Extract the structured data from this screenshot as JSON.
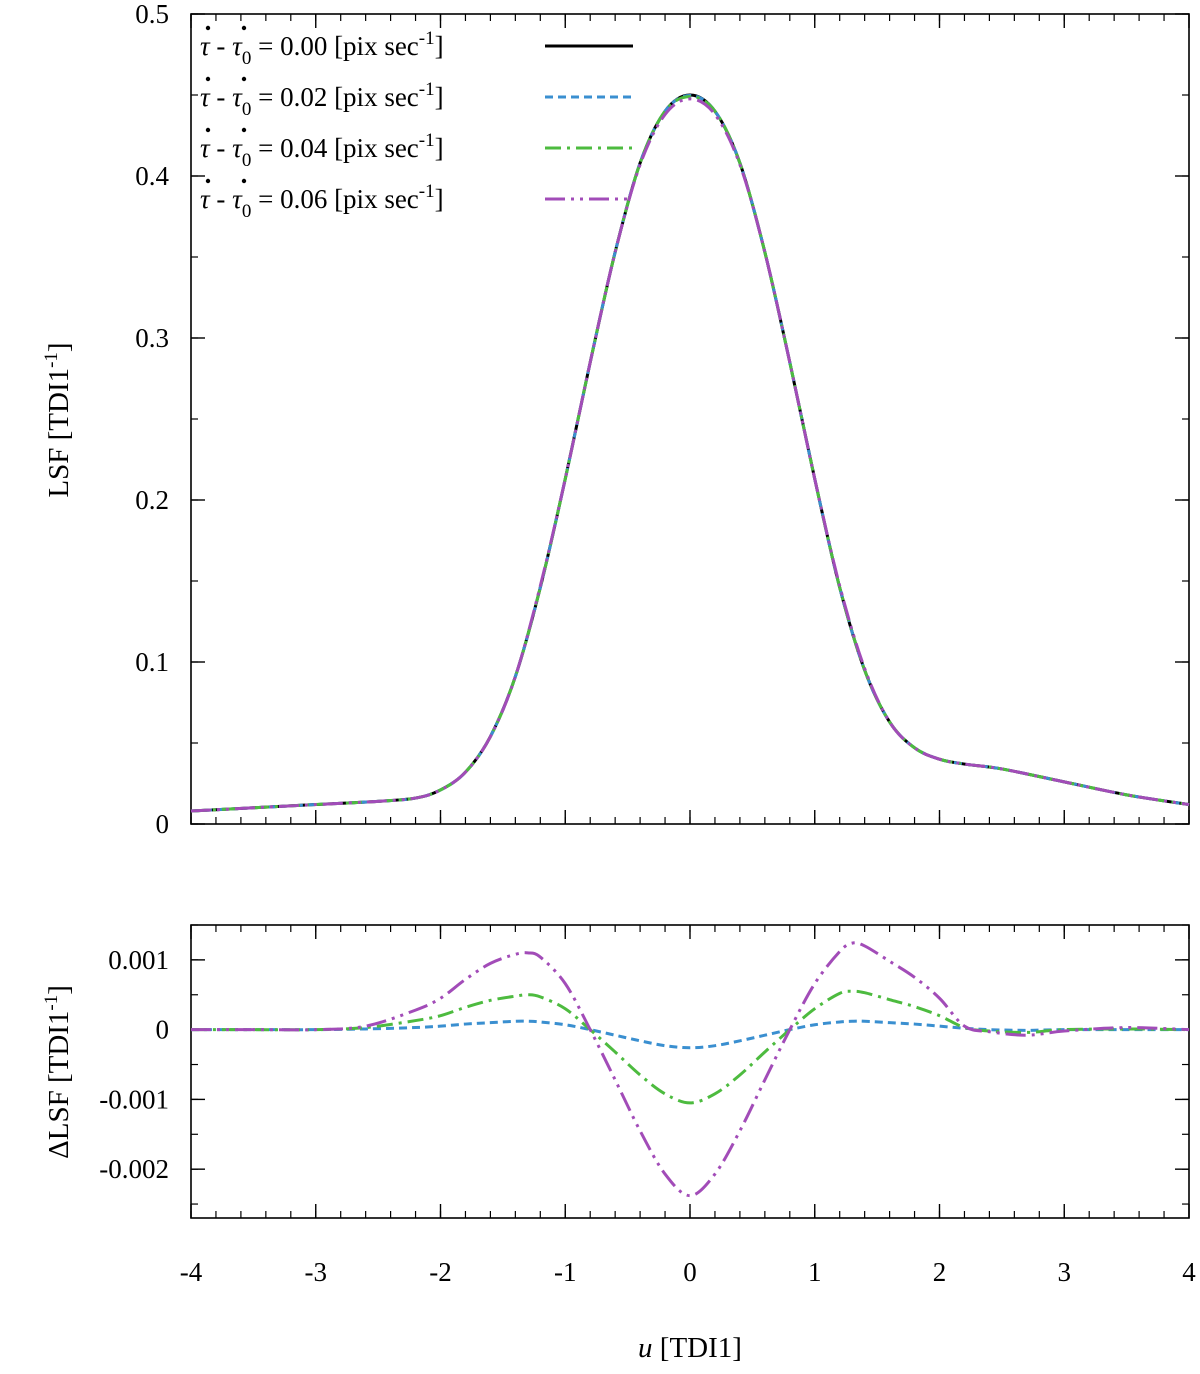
{
  "chart_data": [
    {
      "type": "line",
      "panel": "top",
      "ylabel": "LSF [TDI1",
      "ylabel_sup": "-1",
      "ylabel_tail": "]",
      "xlabel": "",
      "xlim": [
        -4,
        4
      ],
      "ylim": [
        0,
        0.5
      ],
      "xticks": [
        -4,
        -3,
        -2,
        -1,
        0,
        1,
        2,
        3,
        4
      ],
      "yticks": [
        0,
        0.1,
        0.2,
        0.3,
        0.4,
        0.5
      ],
      "ytick_labels": [
        "0",
        "0.1",
        "0.2",
        "0.3",
        "0.4",
        "0.5"
      ],
      "legend_position": "top-left",
      "x": [
        -4.0,
        -3.5,
        -3.0,
        -2.5,
        -2.2,
        -2.0,
        -1.8,
        -1.6,
        -1.4,
        -1.2,
        -1.0,
        -0.8,
        -0.6,
        -0.4,
        -0.2,
        0.0,
        0.2,
        0.4,
        0.6,
        0.8,
        1.0,
        1.2,
        1.4,
        1.6,
        1.8,
        2.0,
        2.2,
        2.5,
        3.0,
        3.5,
        4.0
      ],
      "series": [
        {
          "name": "0.00",
          "style": "solid",
          "color": "#000000",
          "values": [
            0.008,
            0.01,
            0.012,
            0.014,
            0.016,
            0.021,
            0.032,
            0.054,
            0.091,
            0.146,
            0.213,
            0.285,
            0.353,
            0.408,
            0.44,
            0.45,
            0.44,
            0.408,
            0.353,
            0.285,
            0.213,
            0.146,
            0.095,
            0.063,
            0.047,
            0.04,
            0.037,
            0.034,
            0.026,
            0.018,
            0.012
          ]
        },
        {
          "name": "0.02",
          "style": "dashed",
          "color": "#3a8fd0",
          "values": [
            0.008,
            0.01,
            0.012,
            0.014,
            0.016,
            0.021,
            0.032,
            0.054,
            0.091,
            0.146,
            0.213,
            0.285,
            0.353,
            0.408,
            0.44,
            0.4497,
            0.44,
            0.408,
            0.353,
            0.285,
            0.213,
            0.146,
            0.095,
            0.063,
            0.047,
            0.04,
            0.037,
            0.034,
            0.026,
            0.018,
            0.012
          ]
        },
        {
          "name": "0.04",
          "style": "dashdot",
          "color": "#4dbb3f",
          "values": [
            0.008,
            0.01,
            0.012,
            0.014,
            0.016,
            0.021,
            0.032,
            0.054,
            0.091,
            0.146,
            0.213,
            0.285,
            0.353,
            0.408,
            0.44,
            0.449,
            0.44,
            0.408,
            0.353,
            0.285,
            0.213,
            0.146,
            0.095,
            0.063,
            0.047,
            0.04,
            0.037,
            0.034,
            0.026,
            0.018,
            0.012
          ]
        },
        {
          "name": "0.06",
          "style": "dashdotdot",
          "color": "#a24cb8",
          "values": [
            0.008,
            0.01,
            0.012,
            0.014,
            0.016,
            0.021,
            0.032,
            0.054,
            0.091,
            0.147,
            0.213,
            0.285,
            0.353,
            0.407,
            0.438,
            0.4476,
            0.438,
            0.407,
            0.353,
            0.285,
            0.213,
            0.147,
            0.096,
            0.063,
            0.047,
            0.04,
            0.037,
            0.034,
            0.026,
            0.018,
            0.012
          ]
        }
      ]
    },
    {
      "type": "line",
      "panel": "bottom",
      "ylabel": "ΔLSF [TDI1",
      "ylabel_sup": "-1",
      "ylabel_tail": "]",
      "xlabel": "u",
      "xlabel_tail": " [TDI1]",
      "xlim": [
        -4,
        4
      ],
      "ylim": [
        -0.0027,
        0.0015
      ],
      "xticks": [
        -4,
        -3,
        -2,
        -1,
        0,
        1,
        2,
        3,
        4
      ],
      "xtick_labels": [
        "-4",
        "-3",
        "-2",
        "-1",
        "0",
        "1",
        "2",
        "3",
        "4"
      ],
      "yticks": [
        0.001,
        0,
        -0.001,
        -0.002
      ],
      "ytick_labels": [
        "0.001",
        "0",
        "-0.001",
        "-0.002"
      ],
      "x": [
        -4.0,
        -3.5,
        -3.0,
        -2.6,
        -2.2,
        -2.0,
        -1.8,
        -1.6,
        -1.4,
        -1.3,
        -1.2,
        -1.0,
        -0.8,
        -0.6,
        -0.4,
        -0.2,
        0.0,
        0.2,
        0.4,
        0.6,
        0.8,
        1.0,
        1.2,
        1.3,
        1.4,
        1.6,
        1.8,
        2.0,
        2.2,
        2.4,
        2.7,
        3.0,
        3.5,
        4.0
      ],
      "series": [
        {
          "name": "0.02",
          "style": "dashed",
          "color": "#3a8fd0",
          "values": [
            0,
            0,
            0,
            1e-05,
            3e-05,
            5e-05,
            8e-05,
            0.0001,
            0.00012,
            0.00012,
            0.00011,
            7e-05,
            0,
            -8e-05,
            -0.00016,
            -0.00023,
            -0.00026,
            -0.00023,
            -0.00016,
            -8e-05,
            0,
            7e-05,
            0.00011,
            0.00012,
            0.00012,
            0.0001,
            8e-05,
            5e-05,
            2e-05,
            0,
            -1e-05,
            0,
            0,
            0
          ]
        },
        {
          "name": "0.04",
          "style": "dashdot",
          "color": "#4dbb3f",
          "values": [
            0,
            0,
            0,
            3e-05,
            0.00013,
            0.0002,
            0.00032,
            0.00042,
            0.00048,
            0.0005,
            0.00047,
            0.0003,
            0,
            -0.00032,
            -0.00065,
            -0.00092,
            -0.00105,
            -0.00092,
            -0.00065,
            -0.00032,
            0,
            0.0003,
            0.00052,
            0.00055,
            0.00053,
            0.00043,
            0.00033,
            0.0002,
            3e-05,
            -2e-05,
            -4e-05,
            0,
            1e-05,
            0
          ]
        },
        {
          "name": "0.06",
          "style": "dashdotdot",
          "color": "#a24cb8",
          "values": [
            0,
            0,
            0,
            5e-05,
            0.00028,
            0.00045,
            0.00072,
            0.00095,
            0.00108,
            0.0011,
            0.00104,
            0.00066,
            0,
            -0.00072,
            -0.00145,
            -0.00207,
            -0.00238,
            -0.00207,
            -0.00145,
            -0.00072,
            0,
            0.00066,
            0.00112,
            0.00124,
            0.0012,
            0.00098,
            0.00075,
            0.00045,
            5e-05,
            -3e-05,
            -8e-05,
            -2e-05,
            3e-05,
            0
          ]
        }
      ]
    }
  ],
  "legend": [
    {
      "prefix": " - ",
      "sub": "0",
      "value": "= 0.00 [pix sec",
      "sup": "-1",
      "close": "]"
    },
    {
      "prefix": " - ",
      "sub": "0",
      "value": "= 0.02 [pix sec",
      "sup": "-1",
      "close": "]"
    },
    {
      "prefix": " - ",
      "sub": "0",
      "value": "= 0.04 [pix sec",
      "sup": "-1",
      "close": "]"
    },
    {
      "prefix": " - ",
      "sub": "0",
      "value": "= 0.06 [pix sec",
      "sup": "-1",
      "close": "]"
    }
  ],
  "legend_symbol": "τ"
}
